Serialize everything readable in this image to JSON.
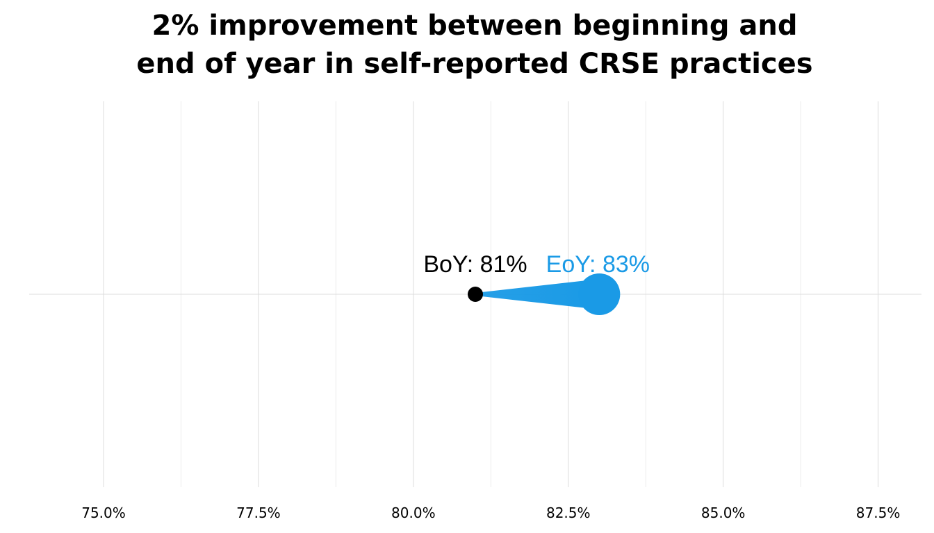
{
  "chart_data": {
    "type": "dumbbell",
    "title_lines": [
      "2% improvement between beginning and",
      "end of year in self-reported CRSE practices"
    ],
    "xlabel": "",
    "ylabel": "",
    "xlim": [
      73.8,
      88.2
    ],
    "x_ticks": [
      75.0,
      77.5,
      80.0,
      82.5,
      85.0,
      87.5
    ],
    "x_tick_labels": [
      "75.0%",
      "77.5%",
      "80.0%",
      "82.5%",
      "85.0%",
      "87.5%"
    ],
    "grid": true,
    "legend": "none",
    "points": [
      {
        "label": "BoY: 81%",
        "value": 81.0,
        "color": "#000000"
      },
      {
        "label": "EoY: 83%",
        "value": 83.0,
        "color": "#1a9ae6"
      }
    ]
  }
}
